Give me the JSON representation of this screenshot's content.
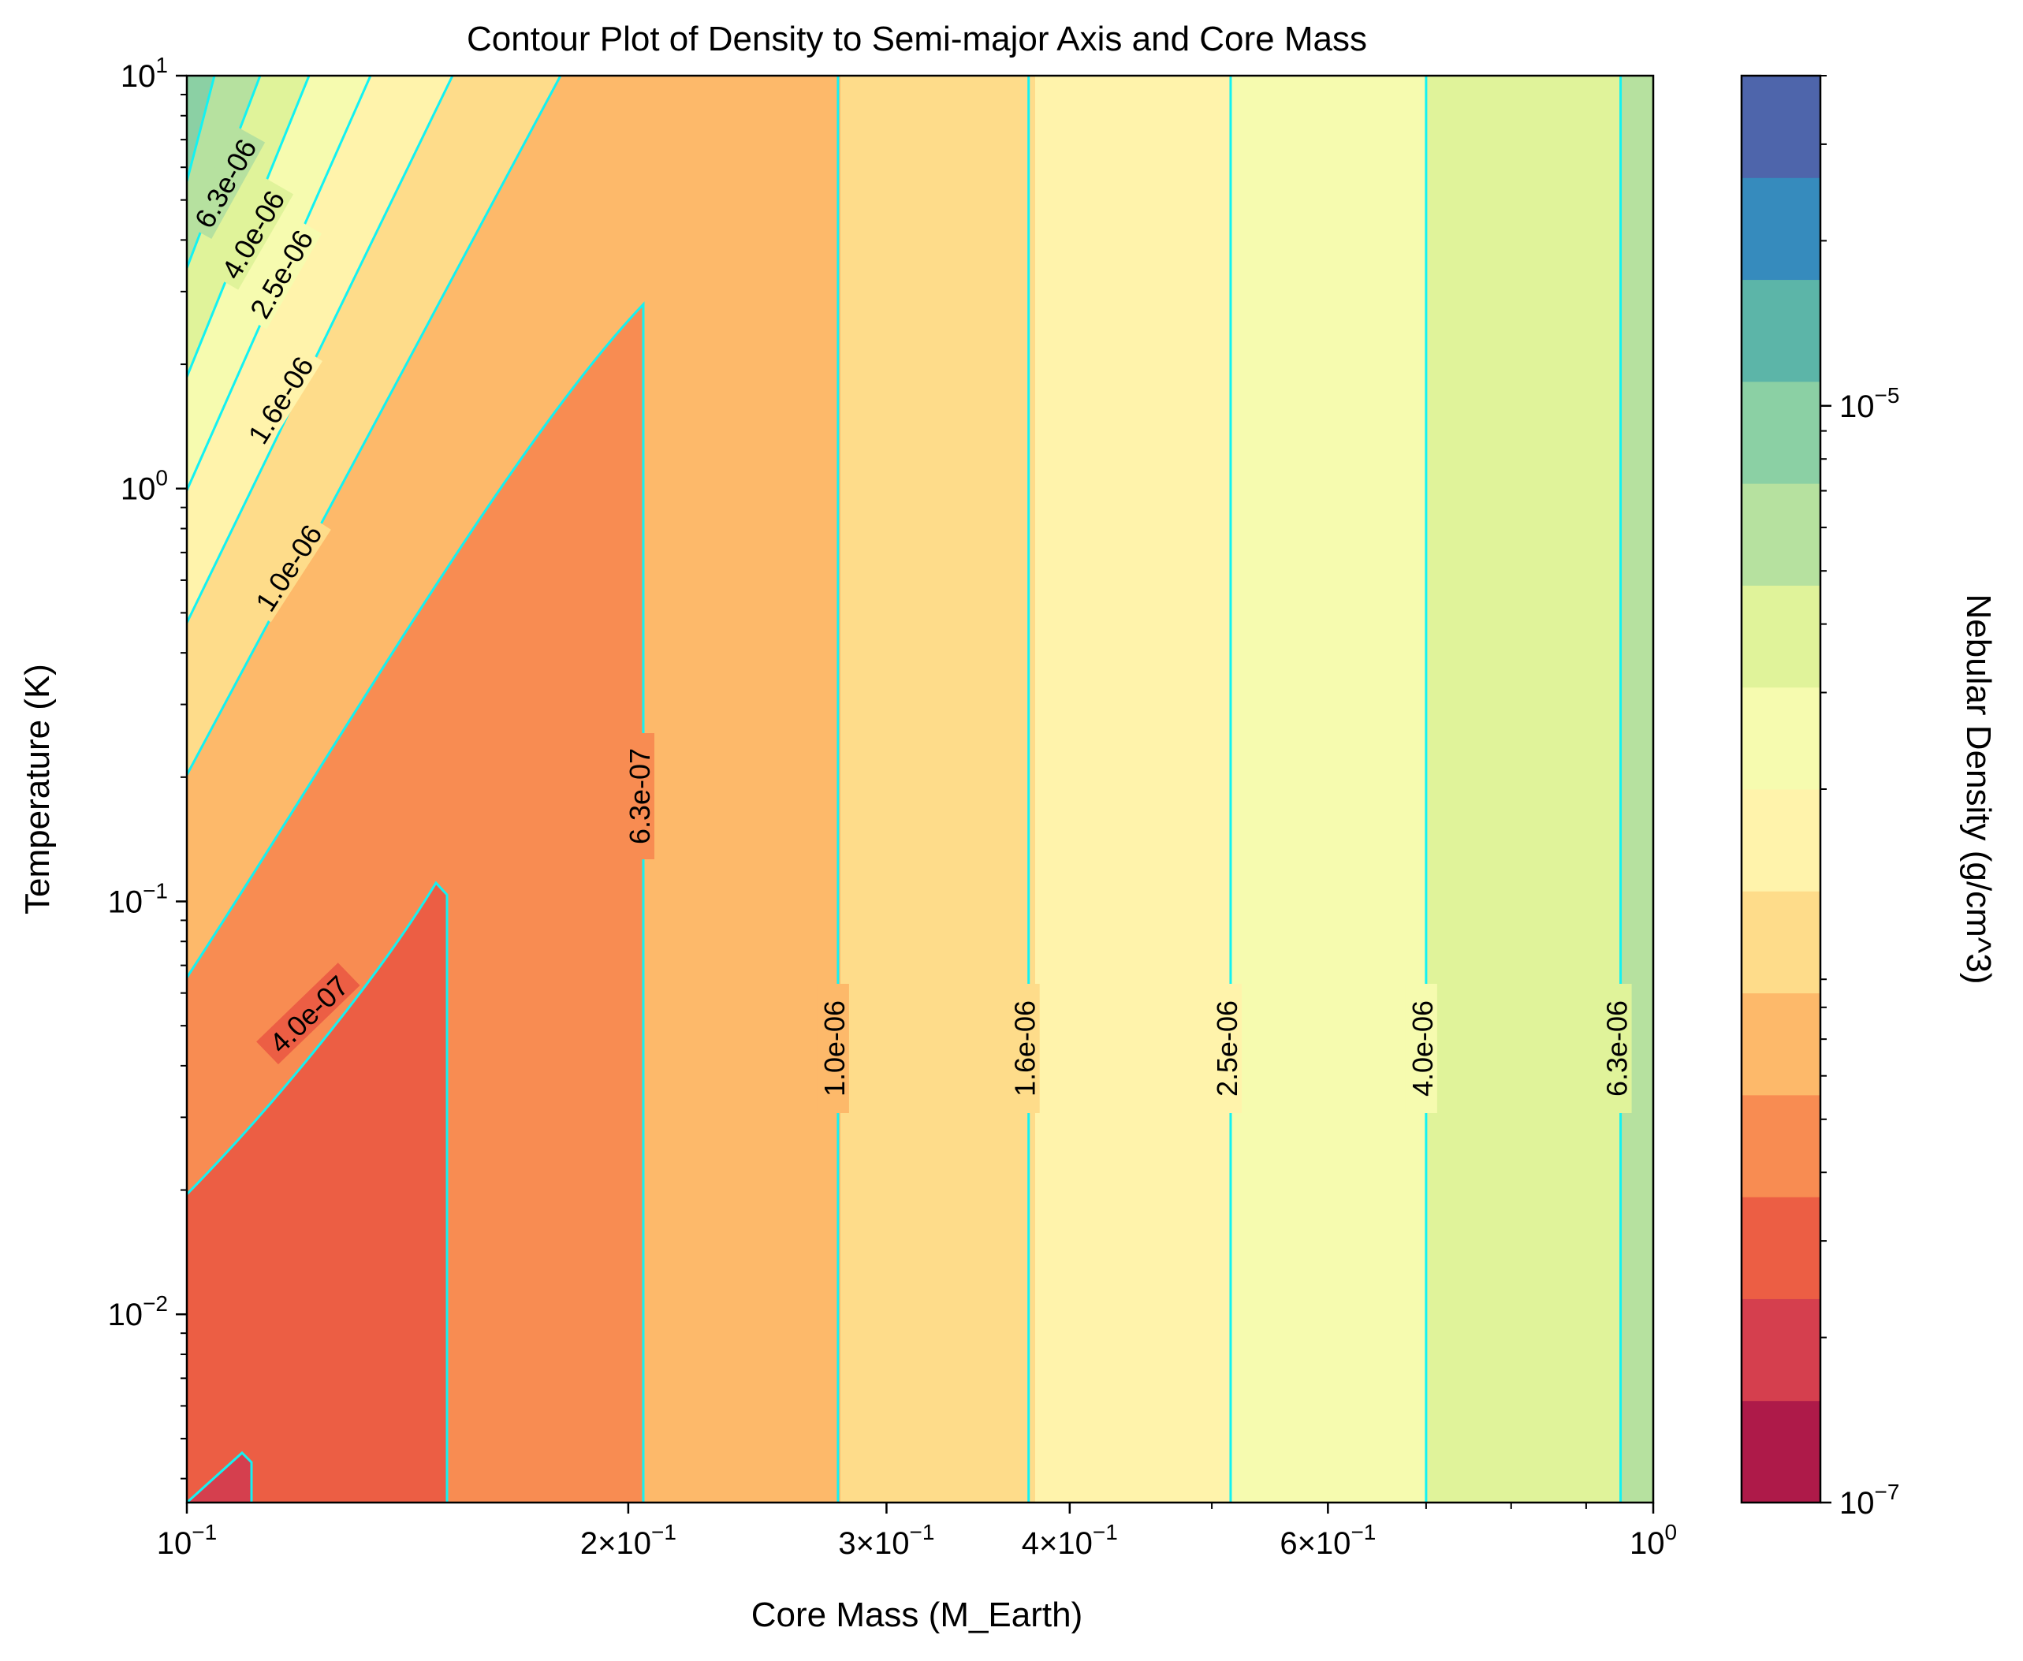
{
  "chart_data": {
    "type": "contour",
    "title": "Contour Plot of Density to Semi-major Axis and Core Mass",
    "xlabel": "Core Mass (M_Earth)",
    "ylabel": "Temperature (K)",
    "xscale": "log",
    "yscale": "log",
    "xlim": [
      0.1,
      1.0
    ],
    "ylim": [
      0.0035,
      10
    ],
    "x_ticks": [
      {
        "value": 0.1,
        "base": "10",
        "exp": "−1",
        "coef": ""
      },
      {
        "value": 0.2,
        "base": "10",
        "exp": "−1",
        "coef": "2×"
      },
      {
        "value": 0.3,
        "base": "10",
        "exp": "−1",
        "coef": "3×"
      },
      {
        "value": 0.4,
        "base": "10",
        "exp": "−1",
        "coef": "4×"
      },
      {
        "value": 0.6,
        "base": "10",
        "exp": "−1",
        "coef": "6×"
      },
      {
        "value": 1.0,
        "base": "10",
        "exp": "0",
        "coef": ""
      }
    ],
    "y_ticks": [
      {
        "value": 0.01,
        "base": "10",
        "exp": "−2"
      },
      {
        "value": 0.1,
        "base": "10",
        "exp": "−1"
      },
      {
        "value": 1,
        "base": "10",
        "exp": "0"
      },
      {
        "value": 10,
        "base": "10",
        "exp": "1"
      }
    ],
    "colorbar": {
      "label": "Nebular Density (g/cm^3)",
      "scale": "log",
      "range": [
        1e-07,
        4e-05
      ],
      "colormap": "Spectral",
      "bands": [
        "#ae1a49",
        "#d53f4e",
        "#ec5e44",
        "#f88c52",
        "#fdb96a",
        "#fedc8a",
        "#fff3ab",
        "#f6fbaf",
        "#e0f39a",
        "#b6e19f",
        "#8bd0a4",
        "#5cb5a8",
        "#368bbd",
        "#4e65ab"
      ],
      "ticks": [
        {
          "value": 1e-07,
          "base": "10",
          "exp": "−7"
        },
        {
          "value": 1e-05,
          "base": "10",
          "exp": "−5"
        }
      ]
    },
    "contour_line_color": "#13f2f2",
    "levels": [
      "4.0e-07",
      "6.3e-07",
      "1.0e-06",
      "1.6e-06",
      "2.5e-06",
      "4.0e-06",
      "6.3e-06"
    ],
    "vertical_contours": [
      {
        "x": 0.278,
        "label": "1.0e-06"
      },
      {
        "x": 0.375,
        "label": "1.6e-06"
      },
      {
        "x": 0.515,
        "label": "2.5e-06"
      },
      {
        "x": 0.7,
        "label": "4.0e-06"
      },
      {
        "x": 0.95,
        "label": "6.3e-06"
      }
    ],
    "diagonal_labels": [
      "6.3e-06",
      "4.0e-06",
      "2.5e-06",
      "1.6e-06",
      "1.0e-06",
      "4.0e-07",
      "6.3e-07"
    ]
  }
}
